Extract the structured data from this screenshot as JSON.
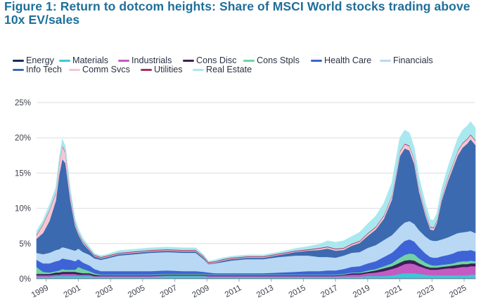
{
  "title": "Figure 1: Return to dotcom heights: Share of MSCI World stocks trading above 10x EV/sales",
  "chart_data": {
    "type": "area",
    "stacked": true,
    "title": "Figure 1: Return to dotcom heights: Share of MSCI World stocks trading above 10x EV/sales",
    "xlabel": "",
    "ylabel": "",
    "ylim": [
      0,
      25
    ],
    "xlim": [
      1998.4,
      2025.7
    ],
    "y_ticks": [
      "0%",
      "5%",
      "10%",
      "15%",
      "20%",
      "25%"
    ],
    "x_ticks": [
      "1999",
      "2001",
      "2003",
      "2005",
      "2007",
      "2009",
      "2011",
      "2013",
      "2015",
      "2017",
      "2019",
      "2021",
      "2023",
      "2025"
    ],
    "grid": "horizontal",
    "legend_position": "top-left",
    "x": [
      1998.4,
      1998.8,
      1999.2,
      1999.6,
      1999.8,
      2000.0,
      2000.2,
      2000.5,
      2000.8,
      2001.0,
      2001.3,
      2001.7,
      2002.0,
      2002.4,
      2002.8,
      2003.5,
      2004.5,
      2005.5,
      2006.5,
      2007.5,
      2008.3,
      2008.8,
      2009.1,
      2009.5,
      2010.0,
      2010.5,
      2011.5,
      2012.5,
      2013.5,
      2014.5,
      2015.3,
      2016.0,
      2016.5,
      2017.0,
      2017.5,
      2018.0,
      2018.5,
      2019.0,
      2019.5,
      2020.0,
      2020.5,
      2020.8,
      2021.0,
      2021.3,
      2021.6,
      2021.9,
      2022.2,
      2022.6,
      2022.9,
      2023.1,
      2023.3,
      2023.6,
      2024.0,
      2024.3,
      2024.6,
      2024.9,
      2025.2,
      2025.4,
      2025.7
    ],
    "series": [
      {
        "name": "Energy",
        "color": "#0b2d5c",
        "values": [
          0.1,
          0.1,
          0.1,
          0.1,
          0.1,
          0.1,
          0.1,
          0.1,
          0.1,
          0.1,
          0.1,
          0.1,
          0.1,
          0.1,
          0.1,
          0.1,
          0.1,
          0.1,
          0.1,
          0.1,
          0.1,
          0.1,
          0.1,
          0.1,
          0.1,
          0.1,
          0.1,
          0.1,
          0.1,
          0.1,
          0.1,
          0.1,
          0.1,
          0.1,
          0.1,
          0.1,
          0.1,
          0.1,
          0.1,
          0.1,
          0.1,
          0.1,
          0.1,
          0.1,
          0.1,
          0.1,
          0.1,
          0.1,
          0.1,
          0.1,
          0.1,
          0.1,
          0.1,
          0.1,
          0.1,
          0.1,
          0.1,
          0.1,
          0.1
        ]
      },
      {
        "name": "Materials",
        "color": "#3cc8d8",
        "values": [
          0.2,
          0.2,
          0.2,
          0.3,
          0.3,
          0.3,
          0.3,
          0.3,
          0.3,
          0.3,
          0.3,
          0.3,
          0.2,
          0.2,
          0.2,
          0.2,
          0.2,
          0.2,
          0.3,
          0.3,
          0.3,
          0.3,
          0.2,
          0.2,
          0.2,
          0.2,
          0.2,
          0.2,
          0.2,
          0.2,
          0.2,
          0.2,
          0.2,
          0.2,
          0.2,
          0.2,
          0.2,
          0.3,
          0.3,
          0.3,
          0.4,
          0.5,
          0.6,
          0.7,
          0.7,
          0.7,
          0.6,
          0.5,
          0.4,
          0.4,
          0.4,
          0.4,
          0.4,
          0.4,
          0.4,
          0.4,
          0.4,
          0.5,
          0.5
        ]
      },
      {
        "name": "Industrials",
        "color": "#c35bc2",
        "values": [
          0.2,
          0.2,
          0.2,
          0.2,
          0.2,
          0.3,
          0.3,
          0.3,
          0.3,
          0.2,
          0.2,
          0.2,
          0.1,
          0.1,
          0.1,
          0.1,
          0.1,
          0.1,
          0.1,
          0.1,
          0.1,
          0.1,
          0.1,
          0.1,
          0.1,
          0.1,
          0.1,
          0.1,
          0.1,
          0.1,
          0.1,
          0.1,
          0.1,
          0.1,
          0.2,
          0.3,
          0.3,
          0.4,
          0.5,
          0.7,
          0.9,
          1.0,
          1.1,
          1.3,
          1.4,
          1.3,
          1.1,
          0.9,
          0.8,
          0.8,
          0.8,
          0.9,
          1.0,
          1.0,
          1.1,
          1.2,
          1.2,
          1.2,
          1.2
        ]
      },
      {
        "name": "Cons Disc",
        "color": "#3b1f55",
        "values": [
          0.2,
          0.2,
          0.2,
          0.3,
          0.3,
          0.3,
          0.3,
          0.3,
          0.3,
          0.3,
          0.2,
          0.2,
          0.2,
          0.1,
          0.1,
          0.1,
          0.1,
          0.1,
          0.1,
          0.1,
          0.1,
          0.1,
          0.1,
          0.1,
          0.1,
          0.1,
          0.1,
          0.1,
          0.1,
          0.1,
          0.1,
          0.1,
          0.1,
          0.1,
          0.1,
          0.2,
          0.2,
          0.2,
          0.3,
          0.4,
          0.4,
          0.5,
          0.5,
          0.5,
          0.5,
          0.5,
          0.4,
          0.3,
          0.3,
          0.3,
          0.3,
          0.3,
          0.3,
          0.4,
          0.4,
          0.4,
          0.4,
          0.4,
          0.4
        ]
      },
      {
        "name": "Cons Stpls",
        "color": "#6fd3a4",
        "values": [
          1.0,
          0.3,
          0.2,
          0.2,
          0.3,
          0.4,
          0.3,
          0.3,
          0.3,
          0.8,
          0.6,
          0.3,
          0.2,
          0.1,
          0.1,
          0.1,
          0.1,
          0.1,
          0.1,
          0.1,
          0.1,
          0.1,
          0.1,
          0.1,
          0.1,
          0.1,
          0.1,
          0.1,
          0.1,
          0.1,
          0.1,
          0.1,
          0.1,
          0.1,
          0.1,
          0.1,
          0.1,
          0.2,
          0.2,
          0.3,
          0.4,
          0.6,
          0.7,
          0.8,
          0.9,
          0.9,
          0.7,
          0.5,
          0.4,
          0.3,
          0.3,
          0.3,
          0.3,
          0.3,
          0.4,
          0.4,
          0.4,
          0.4,
          0.3
        ]
      },
      {
        "name": "Health Care",
        "color": "#3d63d6",
        "values": [
          1.0,
          1.2,
          1.3,
          1.4,
          1.4,
          1.5,
          1.5,
          1.4,
          1.2,
          1.1,
          0.9,
          0.8,
          0.6,
          0.5,
          0.5,
          0.5,
          0.5,
          0.5,
          0.5,
          0.4,
          0.4,
          0.3,
          0.3,
          0.2,
          0.2,
          0.2,
          0.2,
          0.2,
          0.3,
          0.4,
          0.5,
          0.5,
          0.6,
          0.6,
          0.7,
          0.8,
          0.9,
          1.0,
          1.1,
          1.3,
          1.5,
          1.6,
          1.8,
          2.0,
          2.0,
          1.8,
          1.6,
          1.3,
          1.1,
          1.1,
          1.1,
          1.2,
          1.3,
          1.4,
          1.5,
          1.5,
          1.5,
          1.5,
          1.4
        ]
      },
      {
        "name": "Financials",
        "color": "#b8d8f4",
        "values": [
          1.0,
          1.3,
          1.5,
          1.6,
          1.6,
          1.6,
          1.6,
          1.5,
          1.5,
          1.5,
          1.5,
          1.5,
          1.5,
          1.6,
          1.8,
          2.2,
          2.4,
          2.6,
          2.6,
          2.6,
          2.6,
          1.8,
          1.2,
          1.4,
          1.6,
          1.8,
          2.0,
          2.0,
          2.2,
          2.3,
          2.2,
          2.0,
          1.9,
          1.8,
          1.9,
          2.0,
          2.0,
          2.2,
          2.3,
          2.4,
          2.5,
          2.6,
          2.6,
          2.6,
          2.6,
          2.5,
          2.4,
          2.4,
          2.4,
          2.4,
          2.4,
          2.4,
          2.5,
          2.6,
          2.6,
          2.6,
          2.7,
          2.7,
          2.6
        ]
      },
      {
        "name": "Info Tech",
        "color": "#3c6ab0",
        "values": [
          2.0,
          3.0,
          4.5,
          7.0,
          10.5,
          12.5,
          12.0,
          7.0,
          3.5,
          2.0,
          1.2,
          0.6,
          0.3,
          0.2,
          0.2,
          0.2,
          0.2,
          0.2,
          0.2,
          0.2,
          0.2,
          0.2,
          0.1,
          0.1,
          0.2,
          0.2,
          0.2,
          0.2,
          0.3,
          0.5,
          0.7,
          1.0,
          1.2,
          1.0,
          0.8,
          1.0,
          1.3,
          1.7,
          2.2,
          3.0,
          5.0,
          8.0,
          10.0,
          10.5,
          10.0,
          8.5,
          5.5,
          3.0,
          1.5,
          1.5,
          2.5,
          5.5,
          8.0,
          9.5,
          11.0,
          12.0,
          12.5,
          13.0,
          12.5
        ]
      },
      {
        "name": "Comm Svcs",
        "color": "#f6c6d2",
        "values": [
          0.5,
          1.2,
          1.5,
          1.0,
          1.4,
          1.8,
          1.5,
          0.8,
          0.4,
          0.2,
          0.2,
          0.1,
          0.1,
          0.1,
          0.1,
          0.1,
          0.1,
          0.1,
          0.1,
          0.1,
          0.1,
          0.1,
          0.1,
          0.1,
          0.1,
          0.1,
          0.1,
          0.1,
          0.1,
          0.1,
          0.1,
          0.2,
          0.2,
          0.2,
          0.2,
          0.2,
          0.2,
          0.3,
          0.3,
          0.4,
          0.5,
          0.5,
          0.6,
          0.6,
          0.6,
          0.6,
          0.5,
          0.4,
          0.3,
          0.3,
          0.3,
          0.4,
          0.5,
          0.5,
          0.6,
          0.6,
          0.6,
          0.6,
          0.6
        ]
      },
      {
        "name": "Utilities",
        "color": "#a8305d",
        "values": [
          0.1,
          0.1,
          0.1,
          0.1,
          0.1,
          0.1,
          0.1,
          0.1,
          0.1,
          0.1,
          0.1,
          0.1,
          0.1,
          0.1,
          0.1,
          0.1,
          0.1,
          0.1,
          0.1,
          0.1,
          0.1,
          0.1,
          0.1,
          0.1,
          0.1,
          0.1,
          0.1,
          0.1,
          0.1,
          0.1,
          0.1,
          0.1,
          0.1,
          0.1,
          0.1,
          0.1,
          0.1,
          0.1,
          0.1,
          0.1,
          0.1,
          0.1,
          0.1,
          0.1,
          0.1,
          0.1,
          0.1,
          0.1,
          0.1,
          0.1,
          0.1,
          0.1,
          0.1,
          0.1,
          0.1,
          0.1,
          0.1,
          0.1,
          0.1
        ]
      },
      {
        "name": "Real Estate",
        "color": "#a9e8ef",
        "values": [
          0.5,
          0.5,
          0.7,
          0.8,
          0.8,
          0.9,
          0.8,
          0.6,
          0.5,
          0.5,
          0.4,
          0.3,
          0.2,
          0.2,
          0.2,
          0.3,
          0.3,
          0.3,
          0.3,
          0.3,
          0.3,
          0.2,
          0.1,
          0.2,
          0.2,
          0.2,
          0.2,
          0.2,
          0.2,
          0.3,
          0.4,
          0.5,
          0.8,
          0.9,
          1.0,
          1.0,
          1.2,
          1.3,
          1.5,
          1.7,
          1.8,
          2.0,
          1.9,
          1.9,
          1.8,
          1.6,
          1.4,
          1.2,
          1.0,
          1.0,
          1.0,
          1.2,
          1.4,
          1.6,
          1.7,
          1.8,
          1.8,
          1.8,
          1.7
        ]
      }
    ]
  }
}
